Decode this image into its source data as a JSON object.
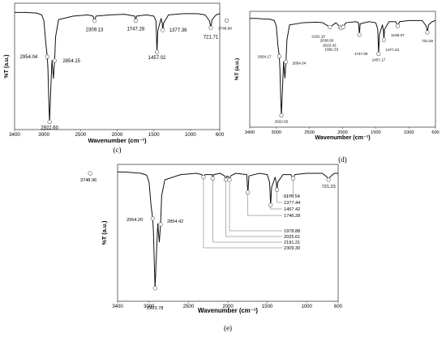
{
  "chart_data": [
    {
      "type": "line",
      "panel_label": "(c)",
      "title": "",
      "xlabel": "Wavenumber (cm⁻¹)",
      "ylabel": "%T (a.u.)",
      "xlim": [
        3400,
        600
      ],
      "xticks": [
        "3400",
        "3000",
        "2500",
        "2000",
        "1500",
        "1000",
        "600"
      ],
      "grid": false,
      "series": [
        {
          "x": [
            3400,
            3250,
            3100,
            3030,
            3000,
            2975,
            2954,
            2945,
            2935,
            2923,
            2910,
            2890,
            2870,
            2854,
            2840,
            2800,
            2600,
            2400,
            2330,
            2309,
            2290,
            2100,
            1900,
            1760,
            1747,
            1735,
            1600,
            1500,
            1470,
            1457,
            1445,
            1400,
            1385,
            1377,
            1368,
            1300,
            1100,
            900,
            800,
            740,
            722,
            705,
            650,
            600
          ],
          "y": [
            95,
            95,
            94.5,
            93,
            88,
            70,
            58,
            48,
            25,
            3,
            25,
            55,
            40,
            55,
            75,
            89,
            92,
            93,
            92,
            88,
            92,
            93,
            93.5,
            92,
            88,
            92,
            93,
            92,
            88,
            62,
            80,
            90,
            86,
            80,
            86,
            93,
            94,
            94,
            93,
            88,
            82,
            89,
            93,
            94
          ]
        }
      ],
      "peak_labels": [
        {
          "x": 2922.6,
          "label": "2922.60"
        },
        {
          "x": 2954.04,
          "label": "2954.04"
        },
        {
          "x": 2854.15,
          "label": "2854.15"
        },
        {
          "x": 2309.13,
          "label": "2309.13"
        },
        {
          "x": 1747.28,
          "label": "1747.28"
        },
        {
          "x": 1457.02,
          "label": "1457.02"
        },
        {
          "x": 1377.36,
          "label": "1377.36"
        },
        {
          "x": 721.71,
          "label": "721.71"
        }
      ]
    },
    {
      "type": "line",
      "panel_label": "(d)",
      "title": "",
      "xlabel": "Wavenumber (cm⁻¹)",
      "ylabel": "%T (a.u.)",
      "xlim": [
        3400,
        600
      ],
      "xticks": [
        "3400",
        "3000",
        "2500",
        "2000",
        "1500",
        "1000",
        "600"
      ],
      "grid": false,
      "series": [
        {
          "x": [
            3400,
            3300,
            3200,
            3100,
            3030,
            3000,
            2975,
            2954,
            2945,
            2935,
            2923,
            2910,
            2890,
            2870,
            2854,
            2840,
            2800,
            2600,
            2400,
            2300,
            2191,
            2100,
            2038,
            2023,
            2000,
            1992,
            1950,
            1800,
            1760,
            1747,
            1735,
            1600,
            1500,
            1470,
            1457,
            1445,
            1400,
            1385,
            1377,
            1368,
            1300,
            1200,
            1169,
            1140,
            1000,
            800,
            740,
            722,
            705,
            650,
            600
          ],
          "y": [
            95,
            95,
            94.5,
            94.3,
            93,
            88,
            70,
            60,
            48,
            25,
            5,
            25,
            55,
            40,
            55,
            75,
            89,
            91,
            91.5,
            91,
            87,
            91,
            87,
            86,
            89,
            87,
            91,
            92,
            91,
            80,
            90,
            92,
            91,
            85,
            62,
            80,
            89,
            84,
            75,
            85,
            92,
            92,
            88,
            92,
            93,
            93,
            88,
            82,
            89,
            92,
            93
          ]
        }
      ],
      "peak_labels": [
        {
          "x": 3748.98,
          "label": "3748.98"
        },
        {
          "x": 2954.17,
          "label": "2954.17"
        },
        {
          "x": 2922.62,
          "label": "2922.62"
        },
        {
          "x": 2854.04,
          "label": "2854.04"
        },
        {
          "x": 2191.1,
          "label": "2191.10"
        },
        {
          "x": 2038.5,
          "label": "2038.50"
        },
        {
          "x": 2023.42,
          "label": "2023.42"
        },
        {
          "x": 1992.33,
          "label": "1992.33"
        },
        {
          "x": 1747.0,
          "label": "1747.00"
        },
        {
          "x": 1457.17,
          "label": "1457.17"
        },
        {
          "x": 1377.23,
          "label": "1377.23"
        },
        {
          "x": 1169.37,
          "label": "1169.37"
        },
        {
          "x": 722.25,
          "label": "722.25"
        }
      ]
    },
    {
      "type": "line",
      "panel_label": "(e)",
      "title": "",
      "xlabel": "Wavenumber (cm⁻¹)",
      "ylabel": "%T (a.u.)",
      "xlim": [
        3400,
        600
      ],
      "xticks": [
        "3400",
        "3000",
        "2500",
        "2000",
        "1500",
        "1000",
        "600"
      ],
      "grid": false,
      "series": [
        {
          "x": [
            3400,
            3300,
            3200,
            3100,
            3030,
            3000,
            2975,
            2954,
            2945,
            2935,
            2924,
            2910,
            2890,
            2870,
            2854,
            2840,
            2800,
            2600,
            2400,
            2330,
            2309,
            2290,
            2200,
            2191,
            2180,
            2100,
            2040,
            2026,
            2010,
            1990,
            1979,
            1965,
            1900,
            1760,
            1746,
            1732,
            1600,
            1500,
            1470,
            1457,
            1445,
            1400,
            1385,
            1377,
            1368,
            1300,
            1200,
            1171,
            1150,
            1000,
            800,
            740,
            721,
            705,
            650,
            600
          ],
          "y": [
            96,
            96,
            95.5,
            95,
            93.5,
            88,
            70,
            60,
            50,
            28,
            6,
            28,
            56,
            42,
            56,
            78,
            90,
            94,
            95,
            94,
            92,
            94,
            94,
            91,
            94,
            95,
            93,
            90,
            93,
            92,
            90,
            93,
            95,
            94,
            80,
            93,
            95,
            94,
            88,
            70,
            84,
            92,
            88,
            82,
            88,
            94,
            94,
            91,
            94,
            95,
            95,
            92,
            90,
            92,
            95,
            95
          ]
        }
      ],
      "peak_labels": [
        {
          "x": 3748.96,
          "label": "3748.96"
        },
        {
          "x": 2954.2,
          "label": "2954.20"
        },
        {
          "x": 2923.78,
          "label": "2923.78"
        },
        {
          "x": 2854.42,
          "label": "2854.42"
        },
        {
          "x": 2309.3,
          "label": "2309.30"
        },
        {
          "x": 2191.21,
          "label": "2191.21"
        },
        {
          "x": 2025.61,
          "label": "2025.61"
        },
        {
          "x": 1978.88,
          "label": "1978.88"
        },
        {
          "x": 1746.28,
          "label": "1746.28"
        },
        {
          "x": 1457.42,
          "label": "1457.42"
        },
        {
          "x": 1377.44,
          "label": "1377.44"
        },
        {
          "x": 1170.54,
          "label": "1170.54"
        },
        {
          "x": 721.23,
          "label": "721.23"
        }
      ]
    }
  ]
}
